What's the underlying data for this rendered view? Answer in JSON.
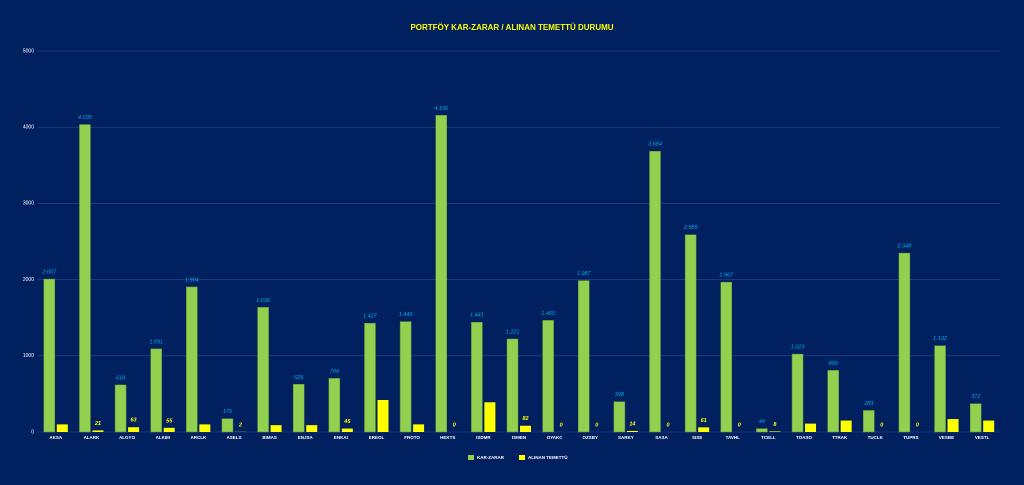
{
  "chart_data": {
    "type": "bar",
    "title": "PORTFÖY KAR-ZARAR / ALINAN TEMETTÜ DURUMU",
    "categories": [
      "AKSA",
      "ALARK",
      "ALGYO",
      "ALKIM",
      "ARCLK",
      "ASELS",
      "BIMAS",
      "ENJSA",
      "ENKAI",
      "EREGL",
      "FROTO",
      "HEKTS",
      "ISDMR",
      "ISMEN",
      "OYAKC",
      "OZSBY",
      "SARKY",
      "SASA",
      "SISE",
      "TAVHL",
      "TCELL",
      "TOASO",
      "TTRAK",
      "TUCLK",
      "TUPRS",
      "VESBE",
      "VESTL"
    ],
    "series": [
      {
        "name": "KAR-ZARAR",
        "color": "#92d050",
        "values": [
          2007,
          4035,
          618,
          1091,
          1904,
          175,
          1636,
          626,
          704,
          1427,
          1449,
          4156,
          1441,
          1221,
          1465,
          1987,
          398,
          3684,
          2589,
          1967,
          44,
          1023,
          809,
          283,
          2348,
          1132,
          372
        ],
        "value_labels": [
          "2.007",
          "4.035",
          "618",
          "1.091",
          "1.904",
          "175",
          "1.636",
          "626",
          "704",
          "1.427",
          "1.449",
          "4.156",
          "1.441",
          "1.221",
          "1.465",
          "1.987",
          "398",
          "3.684",
          "2.589",
          "1.967",
          "44",
          "1.023",
          "809",
          "283",
          "2.348",
          "1.132",
          "372"
        ]
      },
      {
        "name": "ALINAN TEMETTÜ",
        "color": "#ffff00",
        "values": [
          100,
          21,
          63,
          55,
          100,
          2,
          90,
          90,
          45,
          420,
          100,
          0,
          390,
          82,
          0,
          0,
          14,
          0,
          61,
          0,
          8,
          110,
          150,
          0,
          0,
          170,
          150
        ],
        "value_labels": [
          null,
          "21",
          "63",
          "55",
          null,
          "2",
          null,
          null,
          "45",
          null,
          null,
          "0",
          null,
          "82",
          "0",
          "0",
          "14",
          "0",
          "61",
          "0",
          "8",
          null,
          null,
          "0",
          "0",
          null,
          null
        ]
      }
    ],
    "ylim": [
      0,
      5000
    ],
    "yticks": [
      0,
      1000,
      2000,
      3000,
      4000,
      5000
    ],
    "grid": true
  }
}
